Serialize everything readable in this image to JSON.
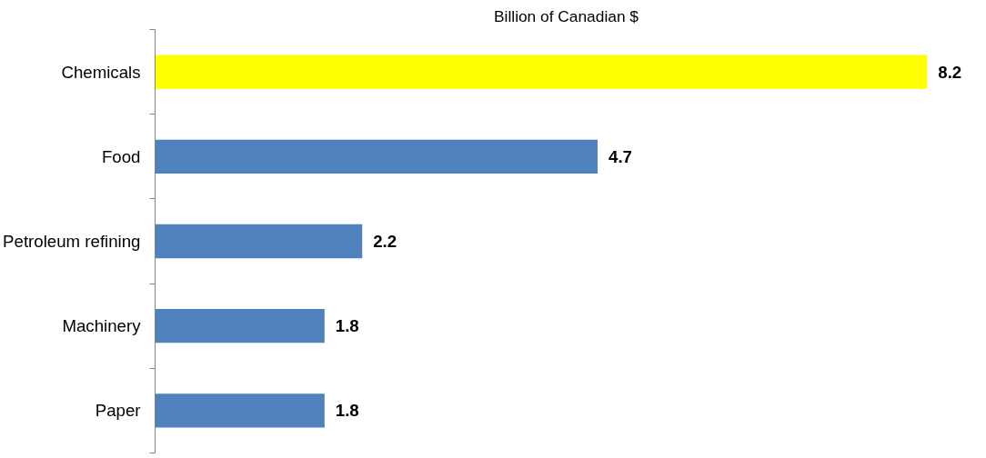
{
  "chart_data": {
    "type": "bar",
    "orientation": "horizontal",
    "title": "Billion of Canadian $",
    "categories": [
      "Chemicals",
      "Food",
      "Petroleum refining",
      "Machinery",
      "Paper"
    ],
    "values": [
      8.2,
      4.7,
      2.2,
      1.8,
      1.8
    ],
    "colors": [
      "#ffff00",
      "#4f81bd",
      "#4f81bd",
      "#4f81bd",
      "#4f81bd"
    ],
    "data_labels": true,
    "grid": false
  }
}
